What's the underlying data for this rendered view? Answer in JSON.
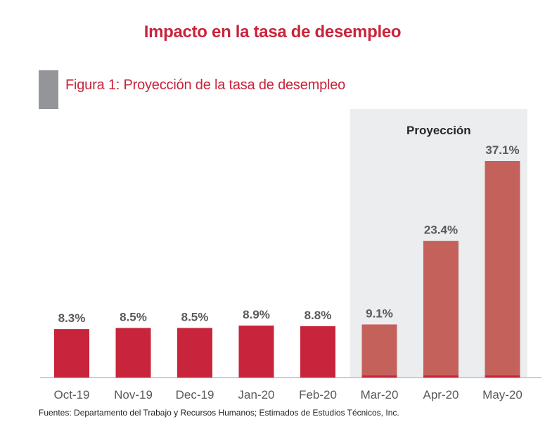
{
  "header": {
    "title": "Impacto en la tasa de desempleo"
  },
  "figure": {
    "title": "Figura 1: Proyección de la tasa de desempleo"
  },
  "source": "Fuentes: Departamento del Trabajo y Recursos Humanos; Estimados de Estudios Técnicos, Inc.",
  "colors": {
    "title": "#c8243b",
    "figure_title": "#c8243b",
    "marker": "#939598",
    "actual_bar": "#c8243b",
    "projection_bar": "#c4615b",
    "projection_band": "#ecedef",
    "value_label": "#595959",
    "tick_label": "#595959",
    "axis": "#bfbfbf"
  },
  "chart_data": {
    "type": "bar",
    "categories": [
      "Oct-19",
      "Nov-19",
      "Dec-19",
      "Jan-20",
      "Feb-20",
      "Mar-20",
      "Apr-20",
      "May-20"
    ],
    "values": [
      8.3,
      8.5,
      8.5,
      8.9,
      8.8,
      9.1,
      23.4,
      37.1
    ],
    "data_labels": [
      "8.3%",
      "8.5%",
      "8.5%",
      "8.9%",
      "8.8%",
      "9.1%",
      "23.4%",
      "37.1%"
    ],
    "projection_start_index": 5,
    "projection_label": "Proyección",
    "ylim": [
      0,
      40
    ],
    "xlabel": "",
    "ylabel": "",
    "grid": false,
    "legend": "none"
  }
}
